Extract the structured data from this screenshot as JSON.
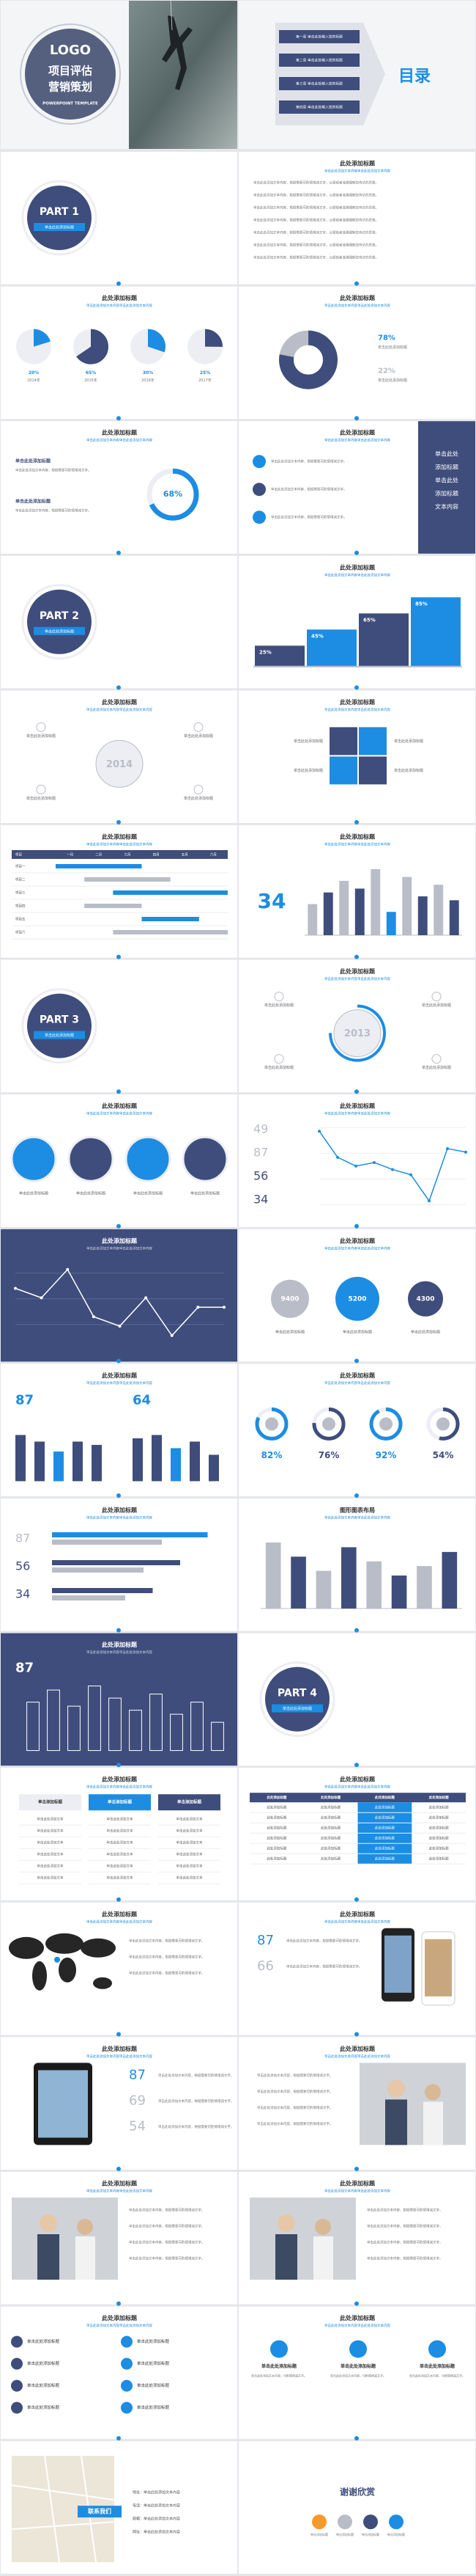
{
  "colors": {
    "primary": "#3f4d7c",
    "accent": "#1c8de2",
    "muted": "#b9bdc7",
    "light": "#eceef3"
  },
  "cover": {
    "logo": "LOGO",
    "title": [
      "项目评估",
      "营销策划"
    ],
    "subtitle": "POWERPOINT TEMPLATE"
  },
  "contents": {
    "title": "目录",
    "items": [
      "第一章 单击此处输入您的标题",
      "第二章 单击此处输入您的标题",
      "第三章 单击此处输入您的标题",
      "第四章 单击此处输入您的标题"
    ]
  },
  "slides": [
    {
      "kind": "part",
      "part": "PART 1",
      "label": "单击此处添加标题"
    },
    {
      "kind": "text",
      "title": "此处添加标题",
      "subtitle": "单击此处添加文本内容单击此处添加文本内容",
      "paragraphs": [
        "单击此处添加文本内容，根据需要可酌情增减文字，以便观者准确理解您传达的思想。",
        "单击此处添加文本内容，根据需要可酌情增减文字，以便观者准确理解您传达的思想。",
        "单击此处添加文本内容，根据需要可酌情增减文字，以便观者准确理解您传达的思想。",
        "单击此处添加文本内容，根据需要可酌情增减文字，以便观者准确理解您传达的思想。",
        "单击此处添加文本内容，根据需要可酌情增减文字，以便观者准确理解您传达的思想。",
        "单击此处添加文本内容，根据需要可酌情增减文字，以便观者准确理解您传达的思想。",
        "单击此处添加文本内容，根据需要可酌情增减文字，以便观者准确理解您传达的思想。"
      ]
    },
    {
      "kind": "pies",
      "title": "此处添加标题",
      "subtitle": "单击此处添加文本内容单击此处添加文本内容",
      "values": [
        20,
        65,
        30,
        25
      ],
      "value_labels": [
        "20%",
        "65%",
        "30%",
        "25%"
      ],
      "labels": [
        "2014年",
        "2015年",
        "2016年",
        "2017年"
      ]
    },
    {
      "kind": "donut",
      "title": "此处添加标题",
      "subtitle": "单击此处添加文本内容单击此处添加文本内容",
      "values": [
        78,
        22
      ],
      "value_labels": [
        "78%",
        "22%"
      ],
      "labels": [
        "单击此处添加标题",
        "单击此处添加标题"
      ]
    },
    {
      "kind": "gauge",
      "title": "此处添加标题",
      "subtitle": "单击此处添加文本内容单击此处添加文本内容",
      "value": 68,
      "value_label": "68%",
      "labels": [
        "单击此处添加标题",
        "单击此处添加标题"
      ],
      "paragraphs": [
        "单击此处添加文本内容，根据需要可酌情增减文字。",
        "单击此处添加文本内容，根据需要可酌情增减文字。"
      ]
    },
    {
      "kind": "sidebox",
      "title": "此处添加标题",
      "subtitle": "单击此处添加文本内容单击此处添加文本内容",
      "paragraphs": [
        "单击此处添加文本内容，根据需要可酌情增减文字。",
        "单击此处添加文本内容，根据需要可酌情增减文字。",
        "单击此处添加文本内容，根据需要可酌情增减文字。"
      ],
      "box": [
        "单击此处",
        "添加标题",
        "单击此处",
        "添加标题",
        "文本内容"
      ]
    },
    {
      "kind": "part",
      "part": "PART 2",
      "label": "单击此处添加标题"
    },
    {
      "kind": "steps",
      "title": "此处添加标题",
      "subtitle": "单击此处添加文本内容单击此处添加文本内容",
      "values": [
        25,
        45,
        65,
        85
      ],
      "value_labels": [
        "25%",
        "45%",
        "65%",
        "85%"
      ]
    },
    {
      "kind": "year",
      "title": "此处添加标题",
      "subtitle": "单击此处添加文本内容单击此处添加文本内容",
      "year": "2014",
      "labels": [
        "单击此处添加标题",
        "单击此处添加标题",
        "单击此处添加标题",
        "单击此处添加标题"
      ]
    },
    {
      "kind": "grid4",
      "title": "此处添加标题",
      "subtitle": "单击此处添加文本内容单击此处添加文本内容",
      "labels": [
        "单击此处添加标题",
        "单击此处添加标题",
        "单击此处添加标题",
        "单击此处添加标题"
      ]
    },
    {
      "kind": "gantt",
      "title": "此处添加标题",
      "subtitle": "单击此处添加文本内容单击此处添加文本内容",
      "header": [
        "项目",
        "一月",
        "二月",
        "三月",
        "四月",
        "五月",
        "六月"
      ],
      "rows": [
        "项目一",
        "项目二",
        "项目三",
        "项目四",
        "项目五",
        "项目六"
      ],
      "spans": [
        [
          0,
          3
        ],
        [
          1,
          4
        ],
        [
          2,
          6
        ],
        [
          1,
          3
        ],
        [
          3,
          5
        ],
        [
          2,
          6
        ]
      ]
    },
    {
      "kind": "bars",
      "title": "此处添加标题",
      "subtitle": "单击此处添加文本内容单击此处添加文本内容",
      "big": "34",
      "values": [
        40,
        55,
        70,
        60,
        85,
        30,
        75,
        50,
        65,
        45
      ],
      "highlight": [
        5
      ]
    },
    {
      "kind": "part",
      "part": "PART 3",
      "label": "单击此处添加标题"
    },
    {
      "kind": "year",
      "title": "此处添加标题",
      "subtitle": "单击此处添加文本内容单击此处添加文本内容",
      "year": "2013",
      "value": 75,
      "labels": [
        "单击此处添加标题",
        "单击此处添加标题",
        "单击此处添加标题",
        "单击此处添加标题"
      ]
    },
    {
      "kind": "circles4",
      "title": "此处添加标题",
      "subtitle": "单击此处添加文本内容单击此处添加文本内容",
      "labels": [
        "单击此处添加标题",
        "单击此处添加标题",
        "单击此处添加标题",
        "单击此处添加标题"
      ]
    },
    {
      "kind": "numline",
      "title": "此处添加标题",
      "subtitle": "单击此处添加文本内容单击此处添加文本内容",
      "numbers": [
        "49",
        "87",
        "56",
        "34"
      ],
      "values": [
        80,
        65,
        60,
        62,
        58,
        55,
        40,
        70,
        68
      ]
    },
    {
      "kind": "navyline",
      "title": "此处添加标题",
      "subtitle": "单击此处添加文本内容单击此处添加文本内容",
      "values": [
        60,
        55,
        70,
        45,
        40,
        55,
        35,
        50,
        50
      ]
    },
    {
      "kind": "bubbles",
      "title": "此处添加标题",
      "subtitle": "单击此处添加文本内容单击此处添加文本内容",
      "numbers": [
        "9400",
        "5200",
        "4300"
      ],
      "labels": [
        "单击此处添加标题",
        "单击此处添加标题",
        "单击此处添加标题"
      ]
    },
    {
      "kind": "twobars",
      "title": "此处添加标题",
      "subtitle": "单击此处添加文本内容单击此处添加文本内容",
      "numbers": [
        "87",
        "64"
      ],
      "values": [
        [
          70,
          60,
          45,
          60,
          55
        ],
        [
          65,
          70,
          50,
          60,
          40
        ]
      ]
    },
    {
      "kind": "rings",
      "title": "此处添加标题",
      "subtitle": "单击此处添加文本内容单击此处添加文本内容",
      "values": [
        82,
        76,
        92,
        54
      ],
      "value_labels": [
        "82%",
        "76%",
        "92%",
        "54%"
      ]
    },
    {
      "kind": "hbars",
      "title": "此处添加标题",
      "subtitle": "单击此处添加文本内容单击此处添加文本内容",
      "numbers": [
        "87",
        "56",
        "34"
      ],
      "values": [
        [
          85,
          60
        ],
        [
          70,
          50
        ],
        [
          55,
          40
        ]
      ]
    },
    {
      "kind": "bars",
      "title": "图形图表布局",
      "subtitle": "单击此处添加文本内容单击此处添加文本内容",
      "values": [
        70,
        55,
        40,
        65,
        50,
        35,
        45,
        60
      ],
      "highlight": []
    },
    {
      "kind": "navybars",
      "title": "此处添加标题",
      "subtitle": "单击此处添加文本内容单击此处添加文本内容",
      "number": "87",
      "values": [
        60,
        75,
        55,
        80,
        65,
        50,
        70,
        45,
        60,
        35
      ]
    },
    {
      "kind": "part",
      "part": "PART 4",
      "label": "单击此处添加标题"
    },
    {
      "kind": "table3",
      "title": "此处添加标题",
      "subtitle": "单击此处添加文本内容单击此处添加文本内容",
      "columns": [
        "单击添加标题",
        "单击添加标题",
        "单击添加标题"
      ],
      "rows": [
        "单击此处添加文本",
        "单击此处添加文本",
        "单击此处添加文本",
        "单击此处添加文本",
        "单击此处添加文本",
        "单击此处添加文本"
      ]
    },
    {
      "kind": "table",
      "title": "此处添加标题",
      "subtitle": "单击此处添加文本内容单击此处添加文本内容",
      "highlight_column": 2,
      "header": [
        "此处添加标题",
        "此处添加标题",
        "此处添加标题",
        "此处添加标题"
      ],
      "rows": [
        [
          "此处添加标题",
          "此处添加标题",
          "此处添加标题",
          "此处添加标题"
        ],
        [
          "此处添加标题",
          "此处添加标题",
          "此处添加标题",
          "此处添加标题"
        ],
        [
          "此处添加标题",
          "此处添加标题",
          "此处添加标题",
          "此处添加标题"
        ],
        [
          "此处添加标题",
          "此处添加标题",
          "此处添加标题",
          "此处添加标题"
        ],
        [
          "此处添加标题",
          "此处添加标题",
          "此处添加标题",
          "此处添加标题"
        ],
        [
          "此处添加标题",
          "此处添加标题",
          "此处添加标题",
          "此处添加标题"
        ]
      ]
    },
    {
      "kind": "media",
      "media": "map",
      "side": "left",
      "title": "此处添加标题",
      "subtitle": "单击此处添加文本内容单击此处添加文本内容",
      "paragraphs": [
        "单击此处添加文本内容，根据需要可酌情增减文字。",
        "单击此处添加文本内容，根据需要可酌情增减文字。",
        "单击此处添加文本内容，根据需要可酌情增减文字。"
      ]
    },
    {
      "kind": "media",
      "media": "phone",
      "side": "right",
      "title": "此处添加标题",
      "subtitle": "单击此处添加文本内容单击此处添加文本内容",
      "numbers": [
        "87",
        "66"
      ],
      "paragraphs": [
        "单击此处添加文本内容，根据需要可酌情增减文字。",
        "单击此处添加文本内容，根据需要可酌情增减文字。"
      ]
    },
    {
      "kind": "media",
      "media": "tablet",
      "side": "left",
      "title": "此处添加标题",
      "subtitle": "单击此处添加文本内容单击此处添加文本内容",
      "numbers": [
        "87",
        "69",
        "54"
      ],
      "paragraphs": [
        "单击此处添加文本内容，根据需要可酌情增减文字。",
        "单击此处添加文本内容，根据需要可酌情增减文字。",
        "单击此处添加文本内容，根据需要可酌情增减文字。"
      ]
    },
    {
      "kind": "media",
      "media": "photo",
      "side": "right",
      "title": "此处添加标题",
      "subtitle": "单击此处添加文本内容单击此处添加文本内容",
      "paragraphs": [
        "单击此处添加文本内容，根据需要可酌情增减文字。",
        "单击此处添加文本内容，根据需要可酌情增减文字。",
        "单击此处添加文本内容，根据需要可酌情增减文字。",
        "单击此处添加文本内容，根据需要可酌情增减文字。"
      ]
    },
    {
      "kind": "media",
      "media": "photo",
      "side": "left",
      "title": "此处添加标题",
      "subtitle": "单击此处添加文本内容单击此处添加文本内容",
      "paragraphs": [
        "单击此处添加文本内容，根据需要可酌情增减文字。",
        "单击此处添加文本内容，根据需要可酌情增减文字。",
        "单击此处添加文本内容，根据需要可酌情增减文字。",
        "单击此处添加文本内容，根据需要可酌情增减文字。"
      ]
    },
    {
      "kind": "media",
      "media": "photo",
      "side": "left",
      "title": "此处添加标题",
      "subtitle": "单击此处添加文本内容单击此处添加文本内容",
      "paragraphs": [
        "单击此处添加文本内容，根据需要可酌情增减文字。",
        "单击此处添加文本内容，根据需要可酌情增减文字。",
        "单击此处添加文本内容，根据需要可酌情增减文字。",
        "单击此处添加文本内容，根据需要可酌情增减文字。"
      ]
    },
    {
      "kind": "list",
      "title": "此处添加标题",
      "subtitle": "单击此处添加文本内容单击此处添加文本内容",
      "items": [
        "单击此处添加标题",
        "单击此处添加标题",
        "单击此处添加标题",
        "单击此处添加标题",
        "单击此处添加标题",
        "单击此处添加标题",
        "单击此处添加标题",
        "单击此处添加标题"
      ]
    },
    {
      "kind": "columns",
      "title": "此处添加标题",
      "subtitle": "单击此处添加文本内容单击此处添加文本内容",
      "headings": [
        "单击此处添加标题",
        "单击此处添加标题",
        "单击此处添加标题"
      ],
      "paragraphs": [
        "单击此处添加文本内容，可酌情增减文字。",
        "单击此处添加文本内容，可酌情增减文字。",
        "单击此处添加文本内容，可酌情增减文字。"
      ]
    }
  ],
  "closing": {
    "contact": {
      "title": "联系我们",
      "lines": [
        "地址：单击此处添加文本内容",
        "电话：单击此处添加文本内容",
        "邮箱：单击此处添加文本内容",
        "网址：单击此处添加文本内容"
      ]
    },
    "thanks": {
      "title": "谢谢欣赏",
      "labels": [
        "单击添加标题",
        "单击添加标题",
        "单击添加标题",
        "单击添加标题"
      ]
    }
  }
}
